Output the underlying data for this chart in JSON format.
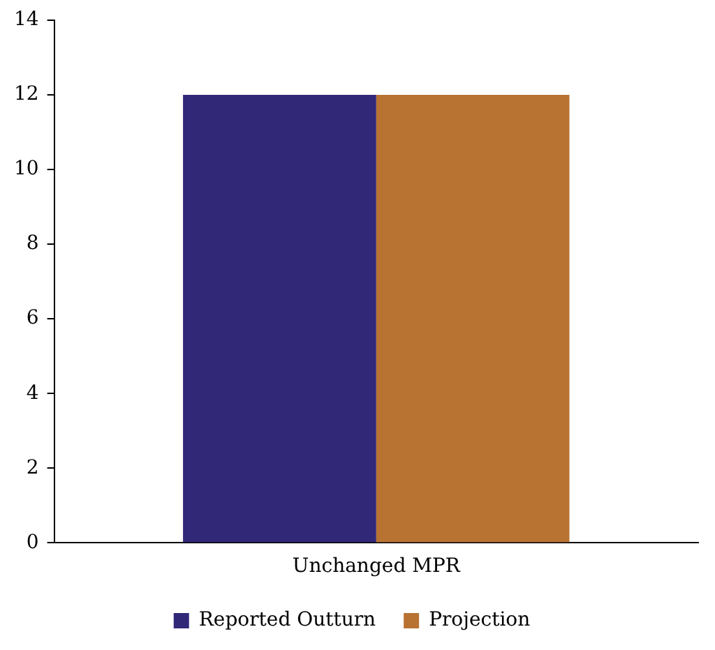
{
  "chart_data": {
    "type": "bar",
    "categories": [
      "Unchanged MPR"
    ],
    "series": [
      {
        "name": "Reported Outturn",
        "color": "#312878",
        "values": [
          12
        ]
      },
      {
        "name": "Projection",
        "color": "#b87333",
        "values": [
          12
        ]
      }
    ],
    "ylim": [
      0,
      14
    ],
    "yticks": [
      0,
      2,
      4,
      6,
      8,
      10,
      12,
      14
    ],
    "grid": false,
    "legend": "bottom"
  }
}
